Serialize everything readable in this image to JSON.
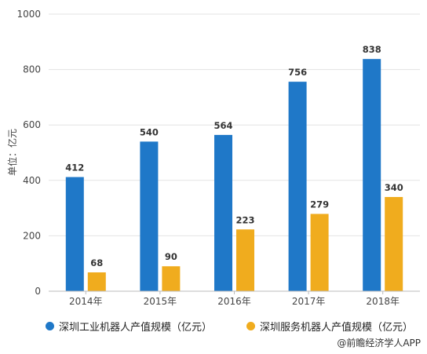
{
  "chart_data": {
    "type": "bar",
    "categories": [
      "2014年",
      "2015年",
      "2016年",
      "2017年",
      "2018年"
    ],
    "series": [
      {
        "name": "深圳工业机器人产值规模（亿元）",
        "values": [
          412,
          540,
          564,
          756,
          838
        ],
        "color": "#1f78c8"
      },
      {
        "name": "深圳服务机器人产值规模（亿元）",
        "values": [
          68,
          90,
          223,
          279,
          340
        ],
        "color": "#f0ac1e"
      }
    ],
    "ylabel": "单位：亿元",
    "ylim": [
      0,
      1000
    ],
    "yticks": [
      0,
      200,
      400,
      600,
      800,
      1000
    ],
    "grid": true,
    "legend_position": "bottom"
  },
  "credit": "@前瞻经济学人APP"
}
